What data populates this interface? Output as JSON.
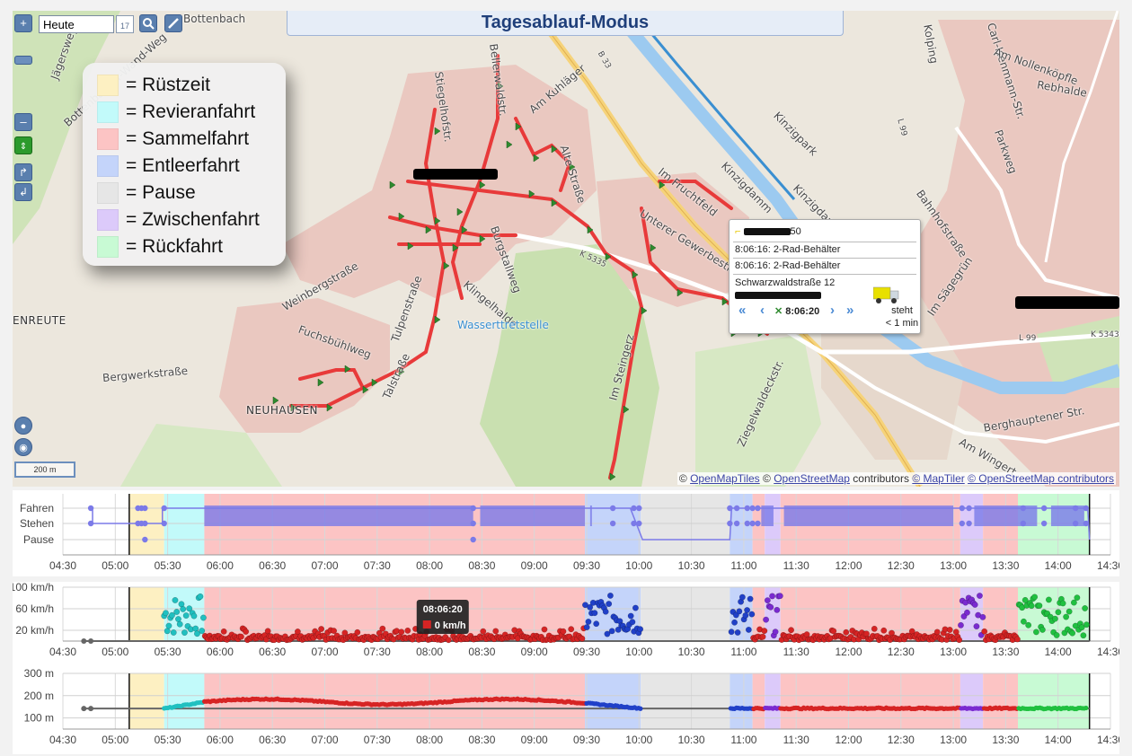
{
  "header": {
    "title": "Tagesablauf-Modus"
  },
  "toolbar": {
    "date_value": "Heute",
    "calendar_day": "17",
    "scale_label": "200 m"
  },
  "legend": {
    "items": [
      {
        "label": "= Rüstzeit",
        "color": "#fdf0c2"
      },
      {
        "label": "= Revieranfahrt",
        "color": "#c2fafa"
      },
      {
        "label": "= Sammelfahrt",
        "color": "#fcc4c4"
      },
      {
        "label": "= Entleerfahrt",
        "color": "#c4d4fa"
      },
      {
        "label": "= Pause",
        "color": "#e6e6e6"
      },
      {
        "label": "= Zwischenfahrt",
        "color": "#dccafa"
      },
      {
        "label": "= Rückfahrt",
        "color": "#c8fad4"
      }
    ]
  },
  "map": {
    "streets": [
      "Bottenbach",
      "Jägersweg",
      "Bottenbacher-Wand-Weg",
      "Stiegelhofstr.",
      "Bellerwaldstr.",
      "Am Kuhläger",
      "B 33",
      "Kolping",
      "Carl-Isenmann-Str.",
      "Am Nollenköpfle",
      "Rebhalde",
      "Kinzigpark",
      "Kinzigdamm",
      "Alte Straße",
      "Im Fruchtfeld",
      "Unterer Gewerbestr.",
      "Kinzigdamm",
      "Bahnhofstraße",
      "Im Sägegrün",
      "Parkweg",
      "Burgstallweg",
      "Klingelhalde",
      "Wasserttretstelle",
      "Weinbergstraße",
      "Tulpenstraße",
      "Fuchsbühlweg",
      "Bergwerkstraße",
      "Im Steingerz",
      "Ziegelwaldeckstr.",
      "Berghauptener Str.",
      "Am Wingert",
      "Talstraße",
      "K 5335",
      "L 99",
      "K 5343",
      "L 99"
    ],
    "places": [
      "ENREUTE",
      "NEUHAUSEN"
    ]
  },
  "popup": {
    "vehicle_suffix": "50",
    "rows": [
      "8:06:16: 2-Rad-Behälter",
      "8:06:16: 2-Rad-Behälter"
    ],
    "address": "Schwarzwaldstraße 12",
    "time": "8:06:20",
    "status": "steht",
    "duration": "< 1 min",
    "nav_first": "«",
    "nav_prev": "‹",
    "nav_next": "›",
    "nav_last": "»"
  },
  "attribution": {
    "copy1": "©",
    "link1": "OpenMapTiles",
    "copy2": "©",
    "link2": "OpenStreetMap",
    "text": "contributors",
    "link3": "© MapTiler",
    "link4": "© OpenStreetMap contributors"
  },
  "timeline": {
    "x_ticks": [
      "04:30",
      "05:00",
      "05:30",
      "06:00",
      "06:30",
      "07:00",
      "07:30",
      "08:00",
      "08:30",
      "09:00",
      "09:30",
      "10:00",
      "10:30",
      "11:00",
      "11:30",
      "12:00",
      "12:30",
      "13:00",
      "13:30",
      "14:00",
      "14:30"
    ],
    "phases": [
      {
        "phase": "Rüstzeit",
        "start": "05:08",
        "end": "05:28",
        "color": "#fdf0c2"
      },
      {
        "phase": "Revieranfahrt",
        "start": "05:28",
        "end": "05:51",
        "color": "#c2fafa"
      },
      {
        "phase": "Sammelfahrt",
        "start": "05:51",
        "end": "09:29",
        "color": "#fcc4c4"
      },
      {
        "phase": "Entleerfahrt",
        "start": "09:29",
        "end": "10:01",
        "color": "#c4d4fa"
      },
      {
        "phase": "Pause",
        "start": "10:01",
        "end": "10:52",
        "color": "#e6e6e6"
      },
      {
        "phase": "Entleerfahrt",
        "start": "10:52",
        "end": "11:05",
        "color": "#c4d4fa"
      },
      {
        "phase": "Sammelfahrt",
        "start": "11:05",
        "end": "11:12",
        "color": "#fcc4c4"
      },
      {
        "phase": "Zwischenfahrt",
        "start": "11:12",
        "end": "11:21",
        "color": "#dccafa"
      },
      {
        "phase": "Sammelfahrt",
        "start": "11:21",
        "end": "13:04",
        "color": "#fcc4c4"
      },
      {
        "phase": "Zwischenfahrt",
        "start": "13:04",
        "end": "13:17",
        "color": "#dccafa"
      },
      {
        "phase": "Sammelfahrt",
        "start": "13:17",
        "end": "13:37",
        "color": "#fcc4c4"
      },
      {
        "phase": "Rückfahrt",
        "start": "13:37",
        "end": "14:18",
        "color": "#c8fad4"
      }
    ],
    "start_line": "05:08",
    "end_line": "14:18"
  },
  "chart_data": [
    {
      "type": "scatter",
      "name_hidden": "state",
      "y_categories": [
        "Fahren",
        "Stehen",
        "Pause"
      ],
      "x_range": [
        "04:30",
        "14:30"
      ],
      "color": "#7b7ae8"
    },
    {
      "type": "scatter",
      "y_ticks": [
        "100 km/h",
        "60 km/h",
        "20 km/h"
      ],
      "ylim": [
        0,
        100
      ],
      "x_range": [
        "04:30",
        "14:30"
      ],
      "tooltip": {
        "time": "08:06:20",
        "value": "0 km/h"
      }
    },
    {
      "type": "line",
      "y_ticks": [
        "300 m",
        "200 m",
        "100 m"
      ],
      "ylim": [
        50,
        300
      ],
      "x_range": [
        "04:30",
        "14:30"
      ]
    }
  ],
  "colors": {
    "route": "#e83a3a",
    "marker": "#2f8a2f",
    "speed_sammel": "#d62424",
    "speed_revier": "#20c0c0",
    "speed_entleer": "#2040c8",
    "speed_zwischen": "#7a2ad0",
    "speed_rueck": "#20c040"
  }
}
